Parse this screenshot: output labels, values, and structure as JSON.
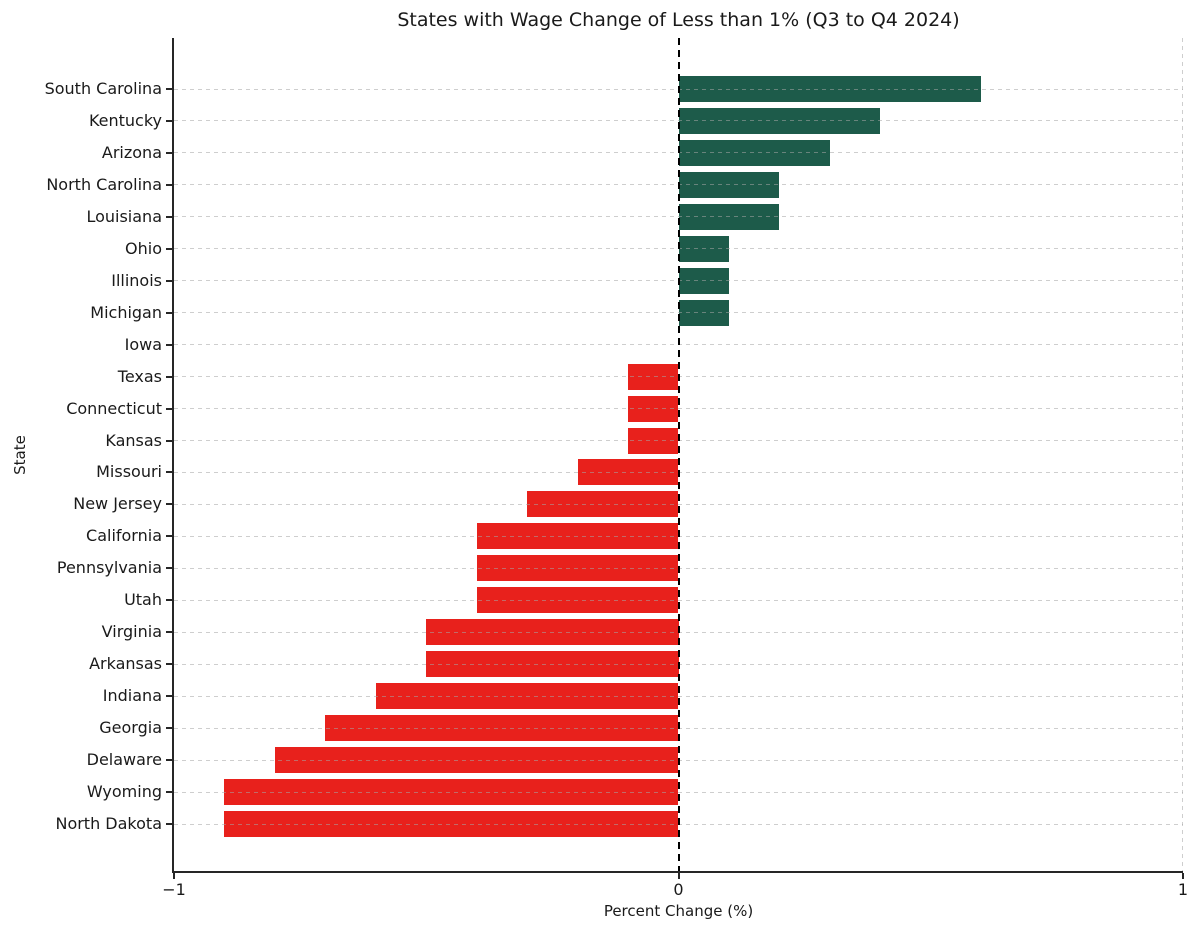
{
  "chart_data": {
    "type": "bar",
    "orientation": "horizontal",
    "title": "States with Wage Change of Less than 1% (Q3 to Q4 2024)",
    "xlabel": "Percent Change (%)",
    "ylabel": "State",
    "xlim": [
      -1,
      1
    ],
    "xticks": [
      -1,
      0,
      1
    ],
    "grid": "dashed-light-gray",
    "legend": "none",
    "zero_reference_line": "black-dashed-vertical",
    "colors": {
      "positive_bar": "#1d5b4a",
      "negative_bar": "#e8211c",
      "grid": "#d9d9d9",
      "zero_line": "#000000",
      "axis": "#262626",
      "text": "#1a1a1a",
      "background": "#ffffff"
    },
    "categories": [
      "South Carolina",
      "Kentucky",
      "Arizona",
      "North Carolina",
      "Louisiana",
      "Ohio",
      "Illinois",
      "Michigan",
      "Iowa",
      "Texas",
      "Connecticut",
      "Kansas",
      "Missouri",
      "New Jersey",
      "California",
      "Pennsylvania",
      "Utah",
      "Virginia",
      "Arkansas",
      "Indiana",
      "Georgia",
      "Delaware",
      "Wyoming",
      "North Dakota"
    ],
    "values": [
      0.6,
      0.4,
      0.3,
      0.2,
      0.2,
      0.1,
      0.1,
      0.1,
      0.0,
      -0.1,
      -0.1,
      -0.1,
      -0.2,
      -0.3,
      -0.4,
      -0.4,
      -0.4,
      -0.5,
      -0.5,
      -0.6,
      -0.7,
      -0.8,
      -0.9,
      -0.9
    ]
  }
}
